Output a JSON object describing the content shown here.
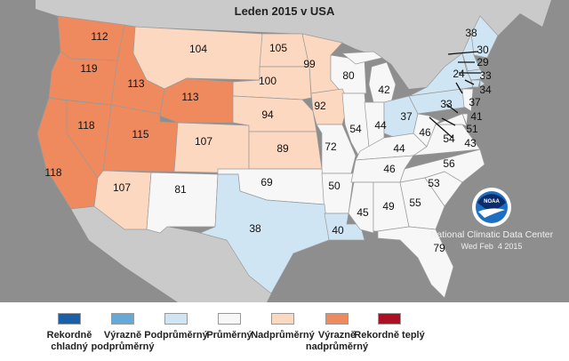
{
  "title": "Leden 2015 v USA",
  "credit": {
    "org": "National Climatic Data Center",
    "date": "Wed Feb  4 2015",
    "logo_text": "NOAA"
  },
  "colors": {
    "rekordne_chladny": "#1a5fa8",
    "vyrazne_podprumerny": "#66a9d6",
    "podprumerny": "#d0e5f3",
    "prumerny": "#f7f7f7",
    "nadprumerny": "#fdd8c0",
    "vyrazne_nadprumerny": "#ef8a5f",
    "rekordne_teply": "#ad1025"
  },
  "legend": [
    {
      "label": "Rekordně chladný",
      "color": "#1a5fa8"
    },
    {
      "label": "Výrazně podprůměrný",
      "color": "#66a9d6"
    },
    {
      "label": "Podprůměrný",
      "color": "#d0e5f3"
    },
    {
      "label": "Průměrný",
      "color": "#f7f7f7"
    },
    {
      "label": "Nadprůměrný",
      "color": "#fdd8c0"
    },
    {
      "label": "Výrazně nadprůměrný",
      "color": "#ef8a5f"
    },
    {
      "label": "Rekordně teplý",
      "color": "#ad1025"
    }
  ],
  "states": [
    {
      "id": "WA",
      "rank": "112",
      "cat": "vyrazne_nadprumerny"
    },
    {
      "id": "OR",
      "rank": "119",
      "cat": "vyrazne_nadprumerny"
    },
    {
      "id": "ID",
      "rank": "113",
      "cat": "vyrazne_nadprumerny"
    },
    {
      "id": "MT",
      "rank": "104",
      "cat": "nadprumerny"
    },
    {
      "id": "ND",
      "rank": "105",
      "cat": "nadprumerny"
    },
    {
      "id": "MN",
      "rank": "99",
      "cat": "nadprumerny"
    },
    {
      "id": "SD",
      "rank": "100",
      "cat": "nadprumerny"
    },
    {
      "id": "WY",
      "rank": "113",
      "cat": "vyrazne_nadprumerny"
    },
    {
      "id": "WI",
      "rank": "80",
      "cat": "prumerny"
    },
    {
      "id": "MI",
      "rank": "42",
      "cat": "prumerny"
    },
    {
      "id": "NY",
      "rank": "24",
      "cat": "podprumerny"
    },
    {
      "id": "ME",
      "rank": "38",
      "cat": "podprumerny"
    },
    {
      "id": "NV",
      "rank": "118",
      "cat": "vyrazne_nadprumerny"
    },
    {
      "id": "CA",
      "rank": "118",
      "cat": "vyrazne_nadprumerny"
    },
    {
      "id": "UT",
      "rank": "115",
      "cat": "vyrazne_nadprumerny"
    },
    {
      "id": "CO",
      "rank": "107",
      "cat": "nadprumerny"
    },
    {
      "id": "NE",
      "rank": "94",
      "cat": "nadprumerny"
    },
    {
      "id": "IA",
      "rank": "92",
      "cat": "nadprumerny"
    },
    {
      "id": "KS",
      "rank": "89",
      "cat": "nadprumerny"
    },
    {
      "id": "IL",
      "rank": "54",
      "cat": "prumerny"
    },
    {
      "id": "IN",
      "rank": "44",
      "cat": "prumerny"
    },
    {
      "id": "OH",
      "rank": "37",
      "cat": "podprumerny"
    },
    {
      "id": "PA",
      "rank": "33",
      "cat": "podprumerny"
    },
    {
      "id": "WV",
      "rank": "46",
      "cat": "prumerny"
    },
    {
      "id": "KY",
      "rank": "44",
      "cat": "prumerny"
    },
    {
      "id": "VA",
      "rank": "54",
      "cat": "prumerny"
    },
    {
      "id": "MO",
      "rank": "72",
      "cat": "prumerny"
    },
    {
      "id": "AZ",
      "rank": "107",
      "cat": "nadprumerny"
    },
    {
      "id": "NM",
      "rank": "81",
      "cat": "prumerny"
    },
    {
      "id": "OK",
      "rank": "69",
      "cat": "prumerny"
    },
    {
      "id": "AR",
      "rank": "50",
      "cat": "prumerny"
    },
    {
      "id": "TN",
      "rank": "46",
      "cat": "prumerny"
    },
    {
      "id": "NC",
      "rank": "56",
      "cat": "prumerny"
    },
    {
      "id": "SC",
      "rank": "53",
      "cat": "prumerny"
    },
    {
      "id": "TX",
      "rank": "38",
      "cat": "podprumerny"
    },
    {
      "id": "LA",
      "rank": "40",
      "cat": "podprumerny"
    },
    {
      "id": "MS",
      "rank": "45",
      "cat": "prumerny"
    },
    {
      "id": "AL",
      "rank": "49",
      "cat": "prumerny"
    },
    {
      "id": "GA",
      "rank": "55",
      "cat": "prumerny"
    },
    {
      "id": "FL",
      "rank": "79",
      "cat": "prumerny"
    },
    {
      "id": "NH",
      "rank": "30",
      "cat": "podprumerny"
    },
    {
      "id": "VT",
      "rank": "29",
      "cat": "podprumerny"
    },
    {
      "id": "MA",
      "rank": "33",
      "cat": "podprumerny"
    },
    {
      "id": "RI",
      "rank": "34",
      "cat": "podprumerny"
    },
    {
      "id": "CT",
      "rank": "37",
      "cat": "podprumerny"
    },
    {
      "id": "NJ",
      "rank": "41",
      "cat": "prumerny"
    },
    {
      "id": "DE",
      "rank": "51",
      "cat": "prumerny"
    },
    {
      "id": "MD",
      "rank": "43",
      "cat": "prumerny"
    }
  ]
}
